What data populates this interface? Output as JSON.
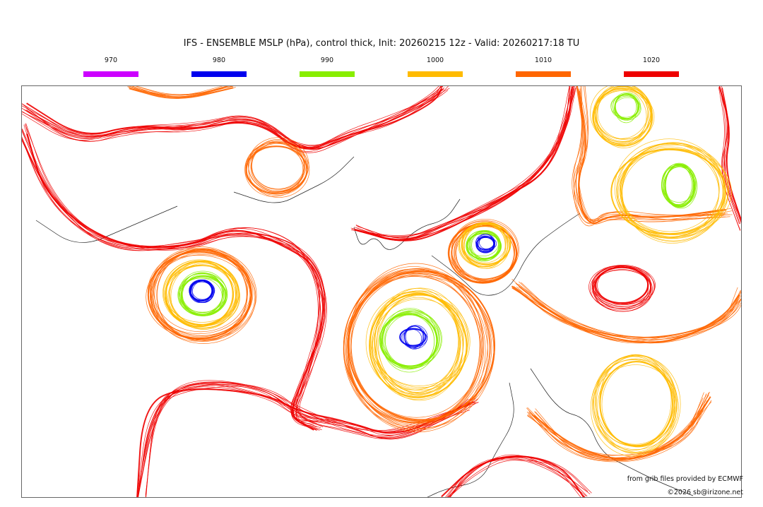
{
  "title": "IFS - ENSEMBLE MSLP (hPa), control thick, Init: 20260215 12z - Valid: 20260217:18 TU",
  "legend": [
    {
      "label": "970",
      "color": "#cc00ff"
    },
    {
      "label": "980",
      "color": "#0000ee"
    },
    {
      "label": "990",
      "color": "#88ee00"
    },
    {
      "label": "1000",
      "color": "#ffbb00"
    },
    {
      "label": "1010",
      "color": "#ff6600"
    },
    {
      "label": "1020",
      "color": "#ee0000"
    }
  ],
  "credits": {
    "source": "from grib files provided by ECMWF",
    "copyright": "©2026 sb@irizone.net"
  }
}
